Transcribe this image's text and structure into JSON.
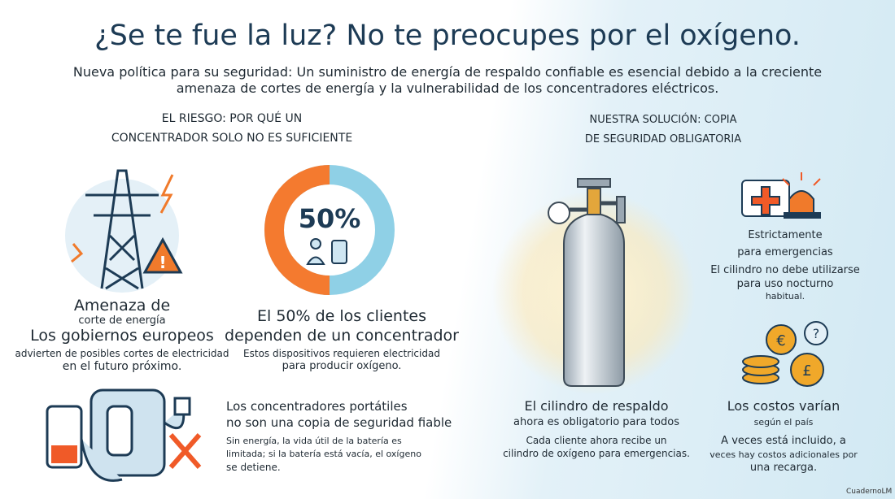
{
  "title": "¿Se te fue la luz? No te preocupes por el oxígeno.",
  "subtitle": [
    "Nueva política para su seguridad: Un suministro de energía de respaldo confiable es esencial debido a la creciente",
    "amenaza de cortes de energía y la vulnerabilidad de los concentradores eléctricos."
  ],
  "left_heading": [
    "EL RIESGO: POR QUÉ UN",
    "CONCENTRADOR SOLO NO ES SUFICIENTE"
  ],
  "power_threat": [
    "Amenaza de",
    "corte de energía",
    "Los gobiernos europeos",
    "advierten de posibles cortes de electricidad",
    "en el futuro próximo."
  ],
  "stat": {
    "value": 50,
    "label": "50%"
  },
  "stat_text": [
    "El 50% de los clientes",
    "dependen de un concentrador",
    "Estos dispositivos requieren electricidad",
    "para producir oxígeno."
  ],
  "portable": [
    "Los concentradores portátiles",
    "no son una copia de seguridad fiable",
    "Sin energía, la vida útil de la batería es",
    "limitada; si la batería está vacía, el oxígeno",
    "se detiene."
  ],
  "right_heading": [
    "NUESTRA SOLUCIÓN: COPIA",
    "DE SEGURIDAD OBLIGATORIA"
  ],
  "cylinder": [
    "El cilindro de respaldo",
    "ahora es obligatorio para todos",
    "Cada cliente ahora recibe un",
    "cilindro de oxígeno para emergencias."
  ],
  "emergency": [
    "Estrictamente",
    "para emergencias",
    "El cilindro no debe utilizarse",
    "para uso nocturno",
    "habitual."
  ],
  "costs": [
    "Los costos varían",
    "según el país",
    "A veces está incluido, a",
    "veces hay costos adicionales por",
    "una recarga."
  ],
  "footer": "CuadernoLM"
}
